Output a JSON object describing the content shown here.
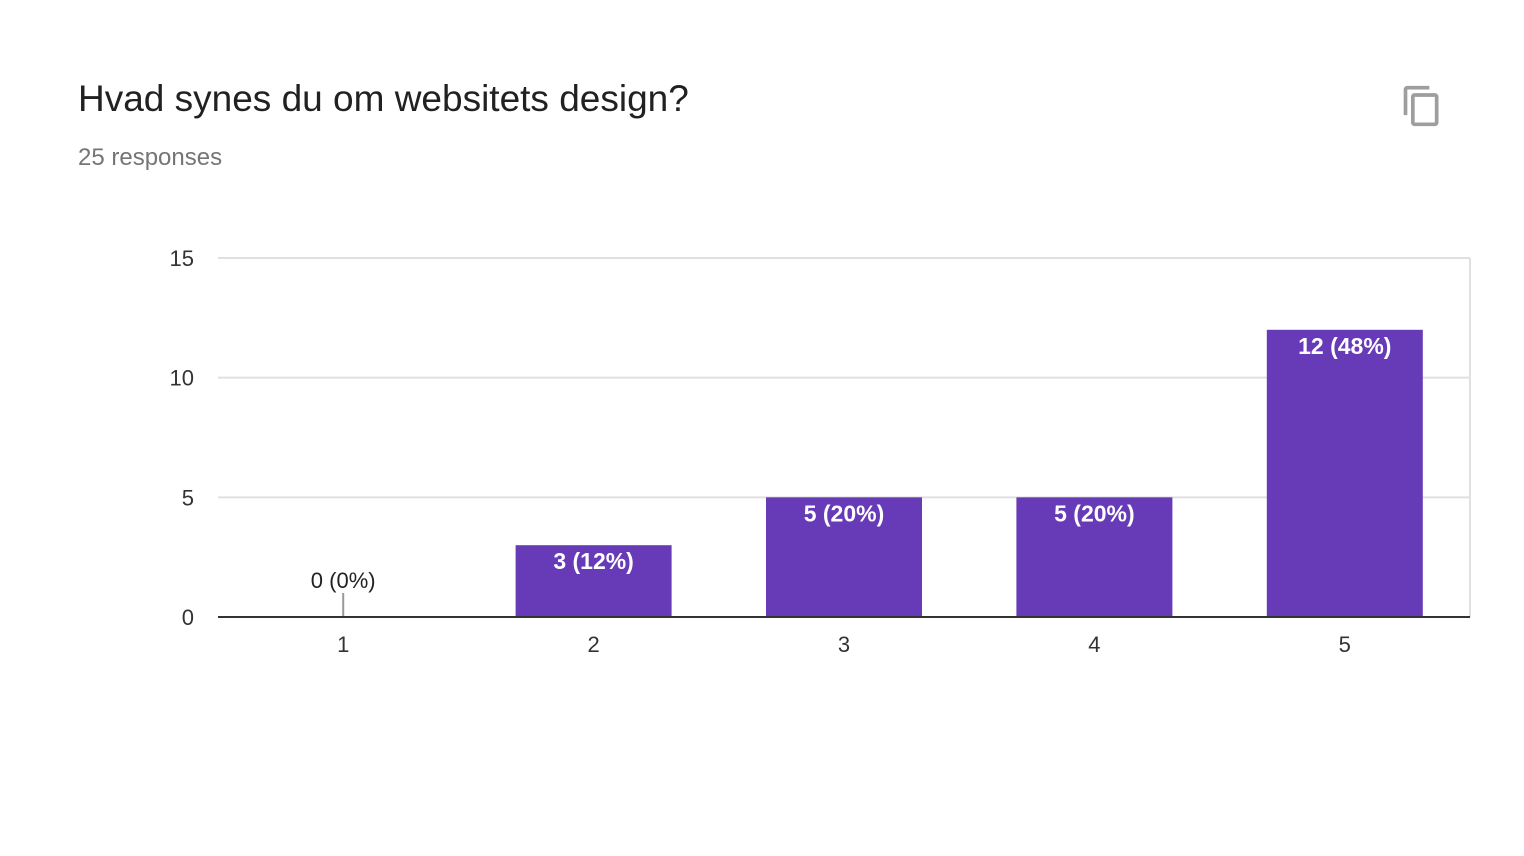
{
  "question": {
    "title": "Hvad synes du om websitets design?",
    "responses": "25 responses"
  },
  "actions": {
    "copy_icon": "copy-icon"
  },
  "colors": {
    "bar": "#673ab7",
    "axis": "#333333",
    "grid": "#e0e0e0",
    "outside_label": "#222222",
    "inside_label": "#ffffff"
  },
  "chart_data": {
    "type": "bar",
    "categories": [
      "1",
      "2",
      "3",
      "4",
      "5"
    ],
    "values": [
      0,
      3,
      5,
      5,
      12
    ],
    "data_labels": [
      "0 (0%)",
      "3 (12%)",
      "5 (20%)",
      "5 (20%)",
      "12 (48%)"
    ],
    "yticks": [
      "0",
      "5",
      "10",
      "15"
    ],
    "ylim": [
      0,
      15
    ],
    "grid": true,
    "legend": "none"
  }
}
